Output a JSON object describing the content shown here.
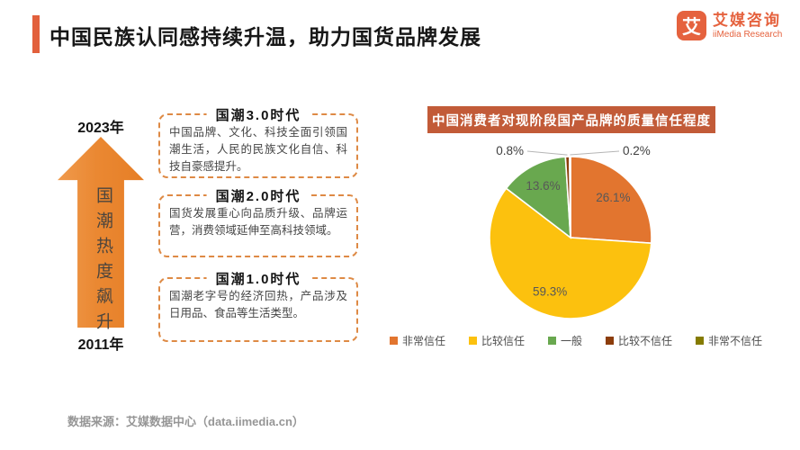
{
  "header": {
    "title": "中国民族认同感持续升温，助力国货品牌发展",
    "accent_color": "#E2603C"
  },
  "logo": {
    "symbol": "艾",
    "name_cn": "艾媒咨询",
    "name_en": "iiMedia Research",
    "brand_color": "#E5623E"
  },
  "timeline": {
    "top_year": "2023年",
    "bottom_year": "2011年",
    "arrow_label": "国潮热度飙升",
    "arrow_color": "#E8842F"
  },
  "eras": [
    {
      "title": "国潮3.0时代",
      "desc": "中国品牌、文化、科技全面引领国潮生活，人民的民族文化自信、科技自豪感提升。"
    },
    {
      "title": "国潮2.0时代",
      "desc": "国货发展重心向品质升级、品牌运营，消费领域延伸至高科技领域。"
    },
    {
      "title": "国潮1.0时代",
      "desc": "国潮老字号的经济回热，产品涉及日用品、食品等生活类型。"
    }
  ],
  "chart_data": {
    "type": "pie",
    "title": "中国消费者对现阶段国产品牌的质量信任程度",
    "categories": [
      "非常信任",
      "比较信任",
      "一般",
      "比较不信任",
      "非常不信任"
    ],
    "values": [
      26.1,
      59.3,
      13.6,
      0.8,
      0.2
    ],
    "labels": [
      "26.1%",
      "59.3%",
      "13.6%",
      "0.8%",
      "0.2%"
    ],
    "colors": [
      "#E2752F",
      "#FCC10E",
      "#69A84F",
      "#8C3D0B",
      "#857B00"
    ],
    "label_placement": [
      "inside",
      "inside",
      "inside",
      "outside-left",
      "outside-right"
    ],
    "start_angle_deg": 0,
    "direction": "clockwise",
    "legend_position": "bottom",
    "title_bg_color": "#C25B38"
  },
  "footer": {
    "source": "数据来源：艾媒数据中心（data.iimedia.cn）"
  }
}
